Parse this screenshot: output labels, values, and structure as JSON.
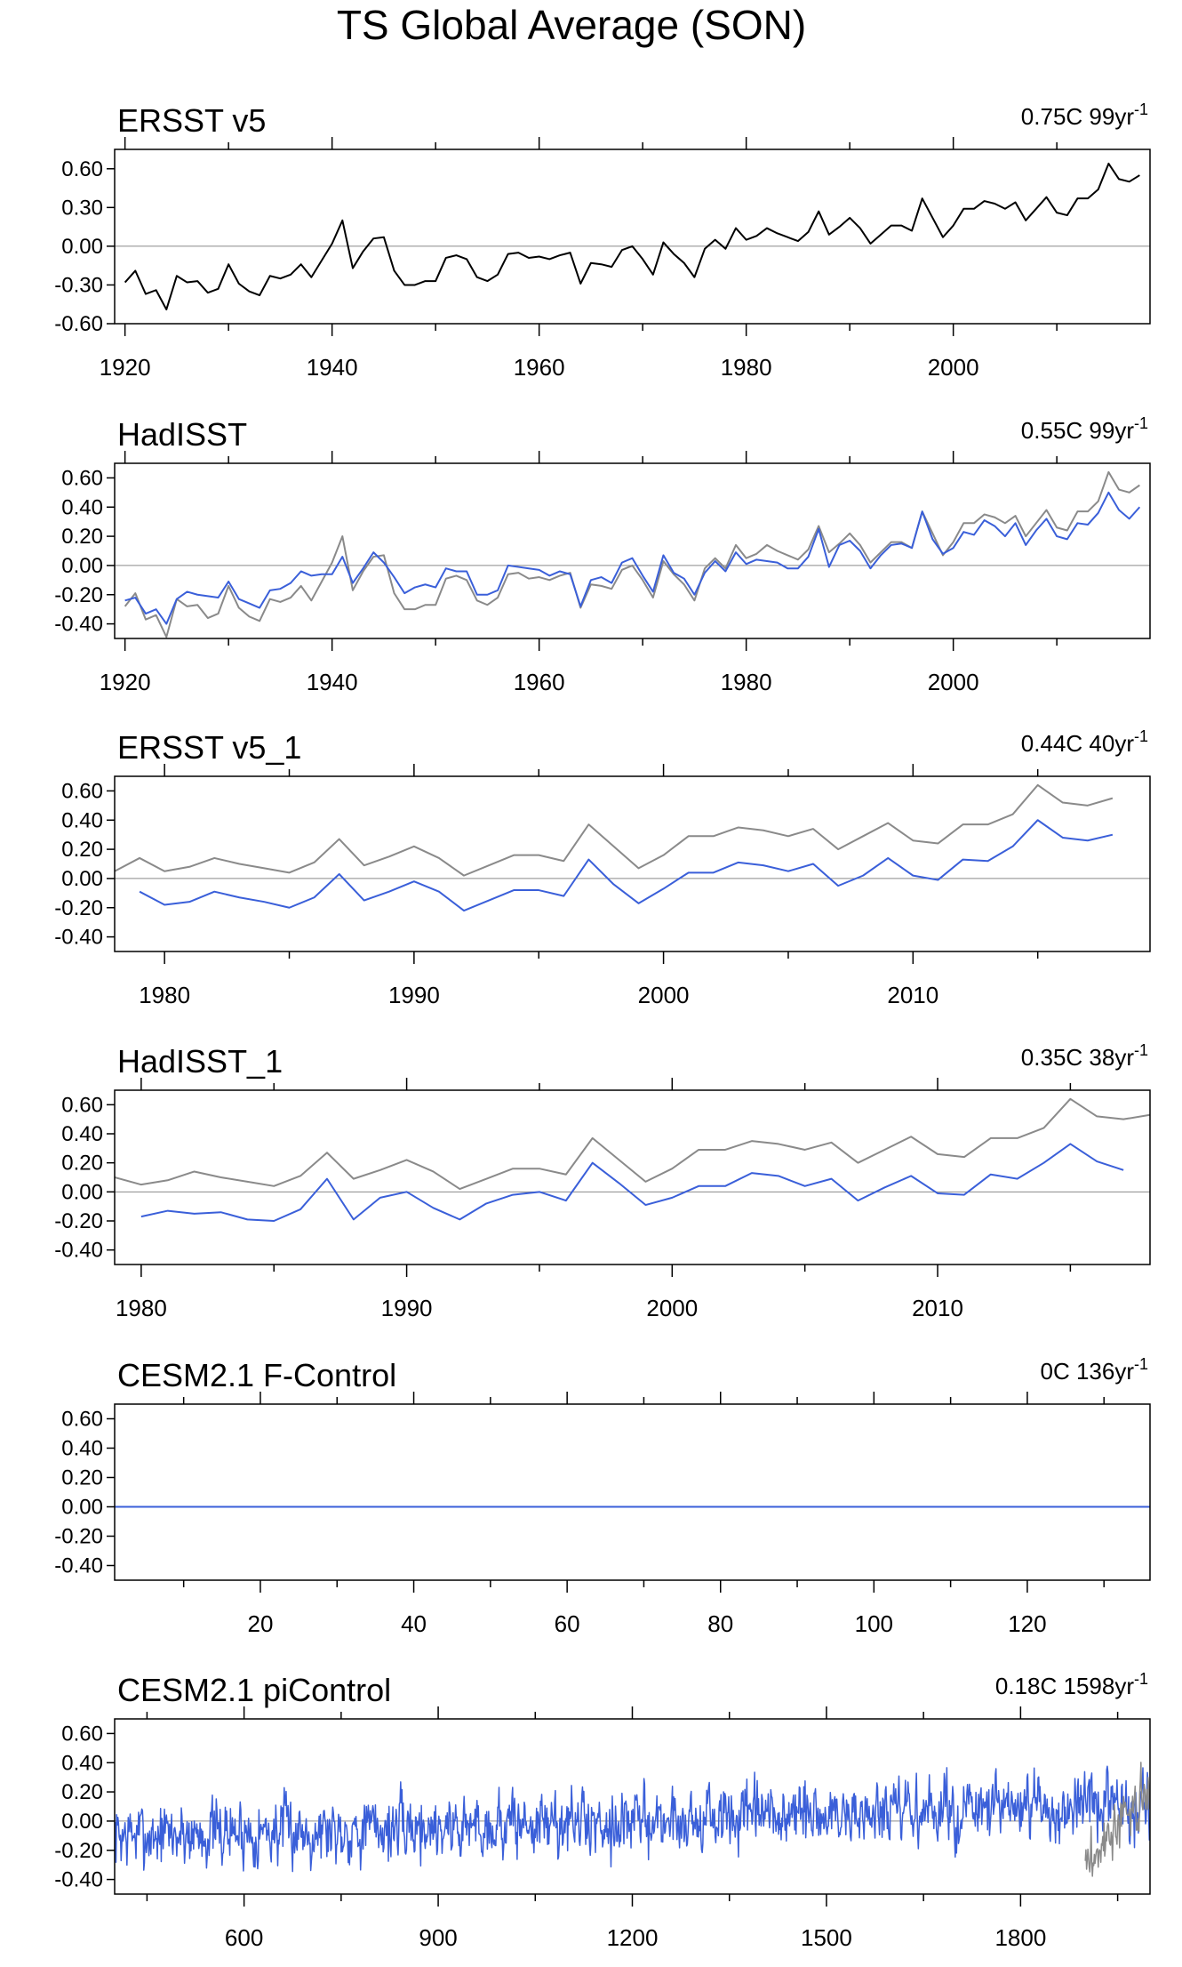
{
  "figure": {
    "title": "TS Global Average (SON)"
  },
  "colors": {
    "obs": "#000000",
    "obs_ref": "#8a8a8a",
    "model": "#3a5fd9"
  },
  "chart_data": [
    {
      "type": "line",
      "title": "ERSST v5",
      "trend_value": "0.75C 99yr",
      "trend_sup": "-1",
      "ylim": [
        -0.6,
        0.75
      ],
      "yticks": [
        0.6,
        0.3,
        0.0,
        -0.3,
        -0.6
      ],
      "ytick_labels": [
        "0.60",
        "0.30",
        "0.00",
        "-0.30",
        "-0.60"
      ],
      "xlim": [
        1919,
        2019
      ],
      "xticks": [
        1920,
        1940,
        1960,
        1980,
        2000
      ],
      "xtick_labels": [
        "1920",
        "1940",
        "1960",
        "1980",
        "2000"
      ],
      "x_start": 1920,
      "series": [
        {
          "color": "#000000",
          "values": [
            -0.28,
            -0.19,
            -0.37,
            -0.34,
            -0.49,
            -0.23,
            -0.28,
            -0.27,
            -0.36,
            -0.33,
            -0.14,
            -0.29,
            -0.35,
            -0.38,
            -0.23,
            -0.25,
            -0.22,
            -0.14,
            -0.24,
            -0.11,
            0.02,
            0.2,
            -0.17,
            -0.04,
            0.06,
            0.07,
            -0.19,
            -0.3,
            -0.3,
            -0.27,
            -0.27,
            -0.09,
            -0.07,
            -0.1,
            -0.24,
            -0.27,
            -0.22,
            -0.06,
            -0.05,
            -0.09,
            -0.08,
            -0.1,
            -0.07,
            -0.05,
            -0.29,
            -0.13,
            -0.14,
            -0.16,
            -0.03,
            0.0,
            -0.1,
            -0.22,
            0.03,
            -0.06,
            -0.13,
            -0.24,
            -0.02,
            0.05,
            -0.02,
            0.14,
            0.05,
            0.08,
            0.14,
            0.1,
            0.07,
            0.04,
            0.11,
            0.27,
            0.09,
            0.15,
            0.22,
            0.14,
            0.02,
            0.09,
            0.16,
            0.16,
            0.12,
            0.37,
            0.22,
            0.07,
            0.16,
            0.29,
            0.29,
            0.35,
            0.33,
            0.29,
            0.34,
            0.2,
            0.29,
            0.38,
            0.26,
            0.24,
            0.37,
            0.37,
            0.44,
            0.64,
            0.52,
            0.5,
            0.55
          ]
        }
      ]
    },
    {
      "type": "line",
      "title": "HadISST",
      "trend_value": "0.55C 99yr",
      "trend_sup": "-1",
      "ylim": [
        -0.5,
        0.7
      ],
      "yticks": [
        0.6,
        0.4,
        0.2,
        0.0,
        -0.2,
        -0.4
      ],
      "ytick_labels": [
        "0.60",
        "0.40",
        "0.20",
        "0.00",
        "-0.20",
        "-0.40"
      ],
      "xlim": [
        1919,
        2019
      ],
      "xticks": [
        1920,
        1940,
        1960,
        1980,
        2000
      ],
      "xtick_labels": [
        "1920",
        "1940",
        "1960",
        "1980",
        "2000"
      ],
      "x_start": 1920,
      "series": [
        {
          "color": "#8a8a8a",
          "values": [
            -0.28,
            -0.19,
            -0.37,
            -0.34,
            -0.49,
            -0.23,
            -0.28,
            -0.27,
            -0.36,
            -0.33,
            -0.14,
            -0.29,
            -0.35,
            -0.38,
            -0.23,
            -0.25,
            -0.22,
            -0.14,
            -0.24,
            -0.11,
            0.02,
            0.2,
            -0.17,
            -0.04,
            0.06,
            0.07,
            -0.19,
            -0.3,
            -0.3,
            -0.27,
            -0.27,
            -0.09,
            -0.07,
            -0.1,
            -0.24,
            -0.27,
            -0.22,
            -0.06,
            -0.05,
            -0.09,
            -0.08,
            -0.1,
            -0.07,
            -0.05,
            -0.29,
            -0.13,
            -0.14,
            -0.16,
            -0.03,
            0.0,
            -0.1,
            -0.22,
            0.03,
            -0.06,
            -0.13,
            -0.24,
            -0.02,
            0.05,
            -0.02,
            0.14,
            0.05,
            0.08,
            0.14,
            0.1,
            0.07,
            0.04,
            0.11,
            0.27,
            0.09,
            0.15,
            0.22,
            0.14,
            0.02,
            0.09,
            0.16,
            0.16,
            0.12,
            0.37,
            0.22,
            0.07,
            0.16,
            0.29,
            0.29,
            0.35,
            0.33,
            0.29,
            0.34,
            0.2,
            0.29,
            0.38,
            0.26,
            0.24,
            0.37,
            0.37,
            0.44,
            0.64,
            0.52,
            0.5,
            0.55
          ]
        },
        {
          "color": "#3a5fd9",
          "values": [
            -0.24,
            -0.22,
            -0.33,
            -0.3,
            -0.4,
            -0.23,
            -0.18,
            -0.2,
            -0.21,
            -0.22,
            -0.11,
            -0.23,
            -0.26,
            -0.29,
            -0.17,
            -0.16,
            -0.12,
            -0.04,
            -0.07,
            -0.06,
            -0.06,
            0.06,
            -0.12,
            -0.02,
            0.09,
            0.02,
            -0.08,
            -0.19,
            -0.15,
            -0.13,
            -0.15,
            -0.02,
            -0.04,
            -0.04,
            -0.2,
            -0.2,
            -0.17,
            0.0,
            -0.01,
            -0.02,
            -0.03,
            -0.07,
            -0.04,
            -0.06,
            -0.28,
            -0.1,
            -0.08,
            -0.12,
            0.02,
            0.05,
            -0.07,
            -0.18,
            0.07,
            -0.05,
            -0.09,
            -0.2,
            -0.05,
            0.03,
            -0.04,
            0.09,
            0.01,
            0.04,
            0.03,
            0.02,
            -0.02,
            -0.02,
            0.06,
            0.25,
            -0.01,
            0.14,
            0.17,
            0.1,
            -0.02,
            0.07,
            0.14,
            0.15,
            0.12,
            0.37,
            0.18,
            0.08,
            0.12,
            0.23,
            0.21,
            0.31,
            0.27,
            0.2,
            0.29,
            0.14,
            0.24,
            0.32,
            0.2,
            0.18,
            0.29,
            0.28,
            0.36,
            0.5,
            0.38,
            0.32,
            0.4
          ]
        }
      ]
    },
    {
      "type": "line",
      "title": "ERSST v5_1",
      "trend_value": "0.44C 40yr",
      "trend_sup": "-1",
      "ylim": [
        -0.5,
        0.7
      ],
      "yticks": [
        0.6,
        0.4,
        0.2,
        0.0,
        -0.2,
        -0.4
      ],
      "ytick_labels": [
        "0.60",
        "0.40",
        "0.20",
        "0.00",
        "-0.20",
        "-0.40"
      ],
      "xlim": [
        1978,
        2019.5
      ],
      "xticks": [
        1980,
        1990,
        2000,
        2010
      ],
      "xtick_labels": [
        "1980",
        "1990",
        "2000",
        "2010"
      ],
      "x_start": 1978,
      "series": [
        {
          "color": "#8a8a8a",
          "values": [
            0.05,
            0.14,
            0.05,
            0.08,
            0.14,
            0.1,
            0.07,
            0.04,
            0.11,
            0.27,
            0.09,
            0.15,
            0.22,
            0.14,
            0.02,
            0.09,
            0.16,
            0.16,
            0.12,
            0.37,
            0.22,
            0.07,
            0.16,
            0.29,
            0.29,
            0.35,
            0.33,
            0.29,
            0.34,
            0.2,
            0.29,
            0.38,
            0.26,
            0.24,
            0.37,
            0.37,
            0.44,
            0.64,
            0.52,
            0.5,
            0.55
          ]
        },
        {
          "color": "#3a5fd9",
          "values": [
            null,
            -0.09,
            -0.18,
            -0.16,
            -0.09,
            -0.13,
            -0.16,
            -0.2,
            -0.13,
            0.03,
            -0.15,
            -0.09,
            -0.02,
            -0.09,
            -0.22,
            -0.15,
            -0.08,
            -0.08,
            -0.12,
            0.13,
            -0.04,
            -0.17,
            -0.07,
            0.04,
            0.04,
            0.11,
            0.09,
            0.05,
            0.1,
            -0.05,
            0.02,
            0.14,
            0.02,
            -0.01,
            0.13,
            0.12,
            0.22,
            0.4,
            0.28,
            0.26,
            0.3
          ]
        }
      ]
    },
    {
      "type": "line",
      "title": "HadISST_1",
      "trend_value": "0.35C 38yr",
      "trend_sup": "-1",
      "ylim": [
        -0.5,
        0.7
      ],
      "yticks": [
        0.6,
        0.4,
        0.2,
        0.0,
        -0.2,
        -0.4
      ],
      "ytick_labels": [
        "0.60",
        "0.40",
        "0.20",
        "0.00",
        "-0.20",
        "-0.40"
      ],
      "xlim": [
        1979,
        2018
      ],
      "xticks": [
        1980,
        1990,
        2000,
        2010
      ],
      "xtick_labels": [
        "1980",
        "1990",
        "2000",
        "2010"
      ],
      "x_start": 1979,
      "series": [
        {
          "color": "#8a8a8a",
          "values": [
            0.1,
            0.05,
            0.08,
            0.14,
            0.1,
            0.07,
            0.04,
            0.11,
            0.27,
            0.09,
            0.15,
            0.22,
            0.14,
            0.02,
            0.09,
            0.16,
            0.16,
            0.12,
            0.37,
            0.22,
            0.07,
            0.16,
            0.29,
            0.29,
            0.35,
            0.33,
            0.29,
            0.34,
            0.2,
            0.29,
            0.38,
            0.26,
            0.24,
            0.37,
            0.37,
            0.44,
            0.64,
            0.52,
            0.5,
            0.53
          ]
        },
        {
          "color": "#3a5fd9",
          "values": [
            null,
            -0.17,
            -0.13,
            -0.15,
            -0.14,
            -0.19,
            -0.2,
            -0.12,
            0.09,
            -0.19,
            -0.04,
            0.0,
            -0.11,
            -0.19,
            -0.08,
            -0.02,
            0.0,
            -0.06,
            0.2,
            0.06,
            -0.09,
            -0.04,
            0.04,
            0.04,
            0.13,
            0.11,
            0.04,
            0.09,
            -0.06,
            0.03,
            0.11,
            -0.01,
            -0.02,
            0.12,
            0.09,
            0.2,
            0.33,
            0.21,
            0.15
          ]
        }
      ]
    },
    {
      "type": "line",
      "title": "CESM2.1 F-Control",
      "trend_value": "0C 136yr",
      "trend_sup": "-1",
      "ylim": [
        -0.5,
        0.7
      ],
      "yticks": [
        0.6,
        0.4,
        0.2,
        0.0,
        -0.2,
        -0.4
      ],
      "ytick_labels": [
        "0.60",
        "0.40",
        "0.20",
        "0.00",
        "-0.20",
        "-0.40"
      ],
      "xlim": [
        1,
        136
      ],
      "xticks": [
        20,
        40,
        60,
        80,
        100,
        120
      ],
      "xtick_labels": [
        "20",
        "40",
        "60",
        "80",
        "100",
        "120"
      ],
      "x_start": 1,
      "series": [
        {
          "color": "#3a5fd9",
          "flat": {
            "value": 0.0,
            "count": 136
          }
        }
      ]
    },
    {
      "type": "line",
      "title": "CESM2.1 piControl",
      "trend_value": "0.18C 1598yr",
      "trend_sup": "-1",
      "ylim": [
        -0.5,
        0.7
      ],
      "yticks": [
        0.6,
        0.4,
        0.2,
        0.0,
        -0.2,
        -0.4
      ],
      "ytick_labels": [
        "0.60",
        "0.40",
        "0.20",
        "0.00",
        "-0.20",
        "-0.40"
      ],
      "xlim": [
        400,
        2000
      ],
      "xticks": [
        600,
        900,
        1200,
        1500,
        1800
      ],
      "xtick_labels": [
        "600",
        "900",
        "1200",
        "1500",
        "1800"
      ],
      "x_start": 400,
      "series": [
        {
          "color": "#3a5fd9",
          "noise": {
            "count": 1600,
            "start_mean": -0.1,
            "end_mean": 0.1,
            "amplitude": 0.15,
            "seed": 7
          }
        },
        {
          "color": "#8a8a8a",
          "noise": {
            "count": 100,
            "x_start": 1900,
            "start_mean": -0.3,
            "end_mean": 0.2,
            "amplitude": 0.12,
            "seed": 3
          }
        }
      ]
    }
  ]
}
